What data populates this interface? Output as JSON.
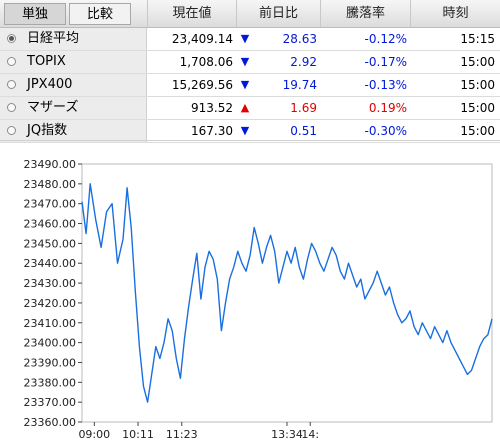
{
  "header": {
    "tab_single": "単独",
    "tab_compare": "比較",
    "col_price": "現在値",
    "col_change": "前日比",
    "col_pct": "騰落率",
    "col_time": "時刻"
  },
  "rows": [
    {
      "name": "日経平均",
      "price": "23,409.14",
      "dir": "down",
      "arrow": "▼",
      "change": "28.63",
      "pct": "-0.12%",
      "time": "15:15",
      "selected": true
    },
    {
      "name": "TOPIX",
      "price": "1,708.06",
      "dir": "down",
      "arrow": "▼",
      "change": "2.92",
      "pct": "-0.17%",
      "time": "15:00",
      "selected": false
    },
    {
      "name": "JPX400",
      "price": "15,269.56",
      "dir": "down",
      "arrow": "▼",
      "change": "19.74",
      "pct": "-0.13%",
      "time": "15:00",
      "selected": false
    },
    {
      "name": "マザーズ",
      "price": "913.52",
      "dir": "up",
      "arrow": "▲",
      "change": "1.69",
      "pct": "0.19%",
      "time": "15:00",
      "selected": false
    },
    {
      "name": "JQ指数",
      "price": "167.30",
      "dir": "down",
      "arrow": "▼",
      "change": "0.51",
      "pct": "-0.30%",
      "time": "15:00",
      "selected": false
    }
  ],
  "colors": {
    "down": "#0018d8",
    "up": "#e00000",
    "line": "#1a6fe0"
  },
  "chart_data": {
    "type": "line",
    "ylim": [
      23360,
      23490
    ],
    "yticks": [
      "23490.00",
      "23480.00",
      "23470.00",
      "23460.00",
      "23450.00",
      "23440.00",
      "23430.00",
      "23420.00",
      "23410.00",
      "23400.00",
      "23390.00",
      "23380.00",
      "23370.00",
      "23360.00"
    ],
    "xticks": [
      "09:00",
      "10:11",
      "11:23",
      "13:34",
      "14:"
    ],
    "xtick_pos": [
      0.09,
      0.41,
      0.73,
      1.5,
      1.67
    ],
    "series": [
      {
        "values": [
          [
            0.0,
            23471
          ],
          [
            0.03,
            23455
          ],
          [
            0.06,
            23480
          ],
          [
            0.1,
            23462
          ],
          [
            0.14,
            23448
          ],
          [
            0.18,
            23466
          ],
          [
            0.22,
            23470
          ],
          [
            0.26,
            23440
          ],
          [
            0.3,
            23452
          ],
          [
            0.33,
            23478
          ],
          [
            0.36,
            23458
          ],
          [
            0.39,
            23426
          ],
          [
            0.42,
            23398
          ],
          [
            0.45,
            23378
          ],
          [
            0.48,
            23370
          ],
          [
            0.51,
            23384
          ],
          [
            0.54,
            23398
          ],
          [
            0.57,
            23392
          ],
          [
            0.6,
            23400
          ],
          [
            0.63,
            23412
          ],
          [
            0.66,
            23406
          ],
          [
            0.69,
            23392
          ],
          [
            0.72,
            23382
          ],
          [
            0.75,
            23402
          ],
          [
            0.78,
            23418
          ],
          [
            0.81,
            23432
          ],
          [
            0.84,
            23445
          ],
          [
            0.87,
            23422
          ],
          [
            0.9,
            23438
          ],
          [
            0.93,
            23446
          ],
          [
            0.96,
            23442
          ],
          [
            0.99,
            23432
          ],
          [
            1.02,
            23406
          ],
          [
            1.05,
            23420
          ],
          [
            1.08,
            23432
          ],
          [
            1.11,
            23438
          ],
          [
            1.14,
            23446
          ],
          [
            1.17,
            23440
          ],
          [
            1.2,
            23436
          ],
          [
            1.23,
            23444
          ],
          [
            1.26,
            23458
          ],
          [
            1.29,
            23450
          ],
          [
            1.32,
            23440
          ],
          [
            1.35,
            23448
          ],
          [
            1.38,
            23454
          ],
          [
            1.41,
            23446
          ],
          [
            1.44,
            23430
          ],
          [
            1.47,
            23438
          ],
          [
            1.5,
            23446
          ],
          [
            1.53,
            23440
          ],
          [
            1.56,
            23448
          ],
          [
            1.59,
            23438
          ],
          [
            1.62,
            23432
          ],
          [
            1.65,
            23442
          ],
          [
            1.68,
            23450
          ],
          [
            1.71,
            23446
          ],
          [
            1.74,
            23440
          ],
          [
            1.77,
            23436
          ],
          [
            1.8,
            23442
          ],
          [
            1.83,
            23448
          ],
          [
            1.86,
            23444
          ],
          [
            1.89,
            23436
          ],
          [
            1.92,
            23432
          ],
          [
            1.95,
            23440
          ],
          [
            1.98,
            23434
          ],
          [
            2.01,
            23428
          ],
          [
            2.04,
            23432
          ],
          [
            2.07,
            23422
          ],
          [
            2.1,
            23426
          ],
          [
            2.13,
            23430
          ],
          [
            2.16,
            23436
          ],
          [
            2.19,
            23430
          ],
          [
            2.22,
            23424
          ],
          [
            2.25,
            23428
          ],
          [
            2.28,
            23420
          ],
          [
            2.31,
            23414
          ],
          [
            2.34,
            23410
          ],
          [
            2.37,
            23412
          ],
          [
            2.4,
            23416
          ],
          [
            2.43,
            23408
          ],
          [
            2.46,
            23404
          ],
          [
            2.49,
            23410
          ],
          [
            2.52,
            23406
          ],
          [
            2.55,
            23402
          ],
          [
            2.58,
            23408
          ],
          [
            2.61,
            23404
          ],
          [
            2.64,
            23400
          ],
          [
            2.67,
            23406
          ],
          [
            2.7,
            23400
          ],
          [
            2.73,
            23396
          ],
          [
            2.76,
            23392
          ],
          [
            2.79,
            23388
          ],
          [
            2.82,
            23384
          ],
          [
            2.85,
            23386
          ],
          [
            2.88,
            23392
          ],
          [
            2.91,
            23398
          ],
          [
            2.94,
            23402
          ],
          [
            2.97,
            23404
          ],
          [
            3.0,
            23412
          ]
        ]
      }
    ]
  }
}
